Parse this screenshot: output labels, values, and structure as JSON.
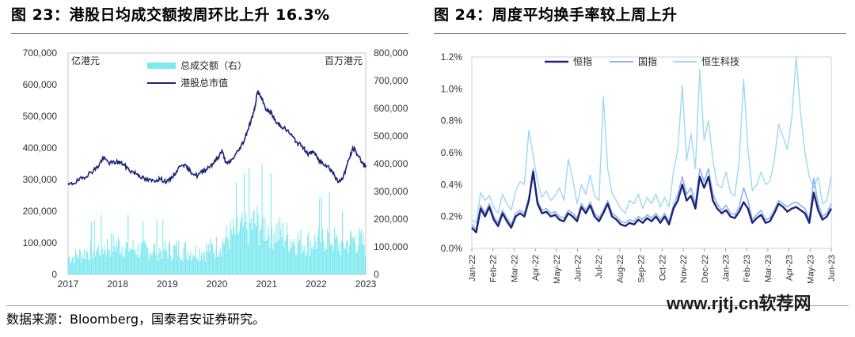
{
  "titles": {
    "fig23": "图 23：港股日均成交额按周环比上升 16.3%",
    "fig24": "图 24：周度平均换手率较上周上升"
  },
  "source": "数据来源：Bloomberg，国泰君安证券研究。",
  "watermark": "www.rjtj.cn软荐网",
  "chart_data": [
    {
      "type": "bar+line",
      "left_unit": "亿港元",
      "right_unit": "百万港元",
      "x_ticks": [
        "2017",
        "2018",
        "2019",
        "2020",
        "2021",
        "2022",
        "2023"
      ],
      "left_axis": {
        "ticks": [
          "0",
          "100,000",
          "200,000",
          "300,000",
          "400,000",
          "500,000",
          "600,000",
          "700,000"
        ],
        "ylim": [
          0,
          700000
        ]
      },
      "right_axis": {
        "ticks": [
          "0",
          "100,000",
          "200,000",
          "300,000",
          "400,000",
          "500,000",
          "600,000",
          "700,000",
          "800,000"
        ],
        "ylim": [
          0,
          800000
        ]
      },
      "colors": {
        "bar": "#7fe9f0",
        "line": "#1c2478"
      },
      "series": [
        {
          "name": "总成交额（右）",
          "axis": "right",
          "kind": "bar",
          "x": [
            2017.0,
            2017.25,
            2017.5,
            2017.75,
            2018.0,
            2018.25,
            2018.5,
            2018.75,
            2019.0,
            2019.25,
            2019.5,
            2019.75,
            2020.0,
            2020.25,
            2020.5,
            2020.75,
            2021.0,
            2021.25,
            2021.5,
            2021.75,
            2022.0,
            2022.25,
            2022.5,
            2022.75,
            2023.0
          ],
          "values": [
            65000,
            80000,
            95000,
            110000,
            120000,
            105000,
            95000,
            100000,
            95000,
            100000,
            90000,
            92000,
            110000,
            150000,
            175000,
            200000,
            190000,
            165000,
            140000,
            125000,
            130000,
            150000,
            110000,
            140000,
            120000
          ]
        },
        {
          "name": "港股总市值",
          "axis": "left",
          "kind": "line",
          "x": [
            2017.0,
            2017.15,
            2017.3,
            2017.45,
            2017.6,
            2017.7,
            2017.85,
            2018.0,
            2018.1,
            2018.25,
            2018.4,
            2018.55,
            2018.7,
            2018.85,
            2019.0,
            2019.15,
            2019.3,
            2019.45,
            2019.6,
            2019.75,
            2019.9,
            2020.0,
            2020.1,
            2020.2,
            2020.3,
            2020.45,
            2020.55,
            2020.65,
            2020.75,
            2020.82,
            2020.9,
            2021.0,
            2021.1,
            2021.2,
            2021.3,
            2021.45,
            2021.6,
            2021.75,
            2021.85,
            2021.95,
            2022.05,
            2022.15,
            2022.25,
            2022.35,
            2022.45,
            2022.55,
            2022.65,
            2022.75,
            2022.85,
            2022.95,
            2023.0
          ],
          "values": [
            282000,
            292000,
            305000,
            322000,
            340000,
            368000,
            352000,
            356000,
            350000,
            328000,
            318000,
            300000,
            296000,
            302000,
            292000,
            318000,
            352000,
            328000,
            312000,
            330000,
            348000,
            365000,
            390000,
            348000,
            362000,
            395000,
            425000,
            470000,
            515000,
            580000,
            555000,
            520000,
            510000,
            478000,
            470000,
            450000,
            420000,
            400000,
            380000,
            390000,
            360000,
            352000,
            340000,
            320000,
            290000,
            310000,
            360000,
            400000,
            375000,
            350000,
            340000
          ]
        }
      ]
    },
    {
      "type": "line",
      "x_ticks": [
        "Jan-22",
        "Feb-22",
        "Mar-22",
        "Apr-22",
        "May-22",
        "Jun-22",
        "Jul-22",
        "Aug-22",
        "Sep-22",
        "Oct-22",
        "Nov-22",
        "Dec-22",
        "Jan-23",
        "Feb-23",
        "Mar-23",
        "Apr-23",
        "May-23",
        "Jun-23"
      ],
      "y_ticks": [
        "0.0%",
        "0.2%",
        "0.4%",
        "0.6%",
        "0.8%",
        "1.0%",
        "1.2%"
      ],
      "ylim": [
        0,
        1.2
      ],
      "legend_position": "top-left",
      "series": [
        {
          "name": "恒指",
          "color": "#1c2478",
          "width": 2.4,
          "values": [
            0.13,
            0.1,
            0.25,
            0.2,
            0.26,
            0.18,
            0.14,
            0.22,
            0.17,
            0.13,
            0.2,
            0.22,
            0.2,
            0.3,
            0.48,
            0.28,
            0.22,
            0.23,
            0.2,
            0.21,
            0.18,
            0.17,
            0.22,
            0.2,
            0.17,
            0.26,
            0.22,
            0.27,
            0.2,
            0.17,
            0.22,
            0.28,
            0.2,
            0.18,
            0.15,
            0.14,
            0.16,
            0.15,
            0.18,
            0.16,
            0.19,
            0.17,
            0.2,
            0.16,
            0.2,
            0.15,
            0.25,
            0.3,
            0.4,
            0.3,
            0.33,
            0.25,
            0.45,
            0.38,
            0.45,
            0.3,
            0.25,
            0.22,
            0.24,
            0.2,
            0.19,
            0.23,
            0.29,
            0.25,
            0.16,
            0.19,
            0.21,
            0.16,
            0.17,
            0.22,
            0.28,
            0.26,
            0.23,
            0.25,
            0.26,
            0.24,
            0.22,
            0.16,
            0.35,
            0.24,
            0.18,
            0.2,
            0.25
          ]
        },
        {
          "name": "国指",
          "color": "#8cb4ea",
          "width": 1.6,
          "values": [
            0.15,
            0.12,
            0.27,
            0.22,
            0.28,
            0.2,
            0.16,
            0.24,
            0.19,
            0.15,
            0.22,
            0.24,
            0.22,
            0.32,
            0.5,
            0.3,
            0.24,
            0.25,
            0.22,
            0.23,
            0.2,
            0.19,
            0.24,
            0.22,
            0.19,
            0.28,
            0.24,
            0.29,
            0.22,
            0.19,
            0.24,
            0.3,
            0.22,
            0.2,
            0.17,
            0.16,
            0.18,
            0.17,
            0.2,
            0.18,
            0.21,
            0.19,
            0.22,
            0.18,
            0.22,
            0.17,
            0.27,
            0.34,
            0.45,
            0.34,
            0.38,
            0.28,
            0.5,
            0.42,
            0.5,
            0.34,
            0.28,
            0.24,
            0.27,
            0.22,
            0.21,
            0.26,
            0.38,
            0.3,
            0.18,
            0.21,
            0.24,
            0.18,
            0.19,
            0.24,
            0.3,
            0.28,
            0.26,
            0.28,
            0.29,
            0.27,
            0.25,
            0.18,
            0.44,
            0.28,
            0.2,
            0.22,
            0.28
          ]
        },
        {
          "name": "恒生科技",
          "color": "#9dd8f3",
          "width": 1.4,
          "values": [
            0.18,
            0.16,
            0.35,
            0.3,
            0.33,
            0.26,
            0.22,
            0.34,
            0.28,
            0.24,
            0.36,
            0.42,
            0.4,
            0.74,
            0.58,
            0.42,
            0.32,
            0.36,
            0.3,
            0.33,
            0.38,
            0.3,
            0.56,
            0.44,
            0.28,
            0.4,
            0.34,
            0.46,
            0.33,
            0.3,
            0.95,
            0.5,
            0.34,
            0.3,
            0.25,
            0.22,
            0.3,
            0.28,
            0.34,
            0.25,
            0.32,
            0.28,
            0.34,
            0.26,
            0.32,
            0.26,
            0.48,
            0.62,
            1.02,
            0.55,
            0.72,
            0.5,
            1.12,
            0.68,
            0.8,
            0.55,
            0.4,
            0.38,
            0.48,
            0.35,
            0.33,
            0.55,
            1.06,
            0.62,
            0.36,
            0.4,
            0.48,
            0.4,
            0.42,
            0.55,
            0.78,
            0.7,
            0.62,
            0.82,
            1.22,
            0.85,
            0.6,
            0.45,
            0.38,
            0.45,
            0.28,
            0.3,
            0.46
          ]
        }
      ]
    }
  ]
}
